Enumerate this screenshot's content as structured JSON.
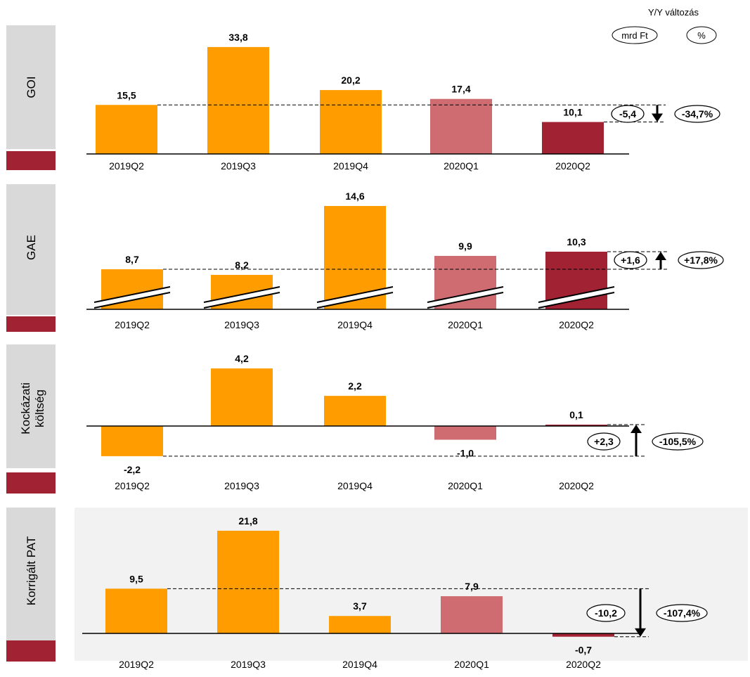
{
  "header": {
    "title": "Y/Y változás",
    "unit_abs": "mrd Ft",
    "unit_pct": "%"
  },
  "colors": {
    "orange": "#FF9C00",
    "pink": "#CE6C72",
    "dark_red": "#A02233",
    "side_panel": "#D9D9D9",
    "side_accent": "#A02233",
    "bottom_panel_bg": "#F2F2F2"
  },
  "chart_data": [
    {
      "type": "bar",
      "panel": "GOI",
      "categories": [
        "2019Q2",
        "2019Q3",
        "2019Q4",
        "2020Q1",
        "2020Q2"
      ],
      "values": [
        15.5,
        33.8,
        20.2,
        17.4,
        10.1
      ],
      "labels": [
        "15,5",
        "33,8",
        "20,2",
        "17,4",
        "10,1"
      ],
      "colors": [
        "orange",
        "orange",
        "orange",
        "pink",
        "dark_red"
      ],
      "broken_axis": false,
      "change_abs": "-5,4",
      "change_pct": "-34,7%",
      "direction": "down"
    },
    {
      "type": "bar",
      "panel": "GAE",
      "categories": [
        "2019Q2",
        "2019Q3",
        "2019Q4",
        "2020Q1",
        "2020Q2"
      ],
      "values": [
        8.7,
        8.2,
        14.6,
        9.9,
        10.3
      ],
      "labels": [
        "8,7",
        "8,2",
        "14,6",
        "9,9",
        "10,3"
      ],
      "colors": [
        "orange",
        "orange",
        "orange",
        "pink",
        "dark_red"
      ],
      "broken_axis": true,
      "change_abs": "+1,6",
      "change_pct": "+17,8%",
      "direction": "up"
    },
    {
      "type": "bar",
      "panel": "Kockázati költség",
      "categories": [
        "2019Q2",
        "2019Q3",
        "2019Q4",
        "2020Q1",
        "2020Q2"
      ],
      "values": [
        -2.2,
        4.2,
        2.2,
        -1.0,
        0.1
      ],
      "labels": [
        "-2,2",
        "4,2",
        "2,2",
        "-1,0",
        "0,1"
      ],
      "colors": [
        "orange",
        "orange",
        "orange",
        "pink",
        "dark_red"
      ],
      "broken_axis": false,
      "change_abs": "+2,3",
      "change_pct": "-105,5%",
      "direction": "up"
    },
    {
      "type": "bar",
      "panel": "Korrigált PAT",
      "categories": [
        "2019Q2",
        "2019Q3",
        "2019Q4",
        "2020Q1",
        "2020Q2"
      ],
      "values": [
        9.5,
        21.8,
        3.7,
        7.9,
        -0.7
      ],
      "labels": [
        "9,5",
        "21,8",
        "3,7",
        "7,9",
        "-0,7"
      ],
      "colors": [
        "orange",
        "orange",
        "orange",
        "pink",
        "dark_red"
      ],
      "broken_axis": false,
      "change_abs": "-10,2",
      "change_pct": "-107,4%",
      "direction": "down"
    }
  ]
}
